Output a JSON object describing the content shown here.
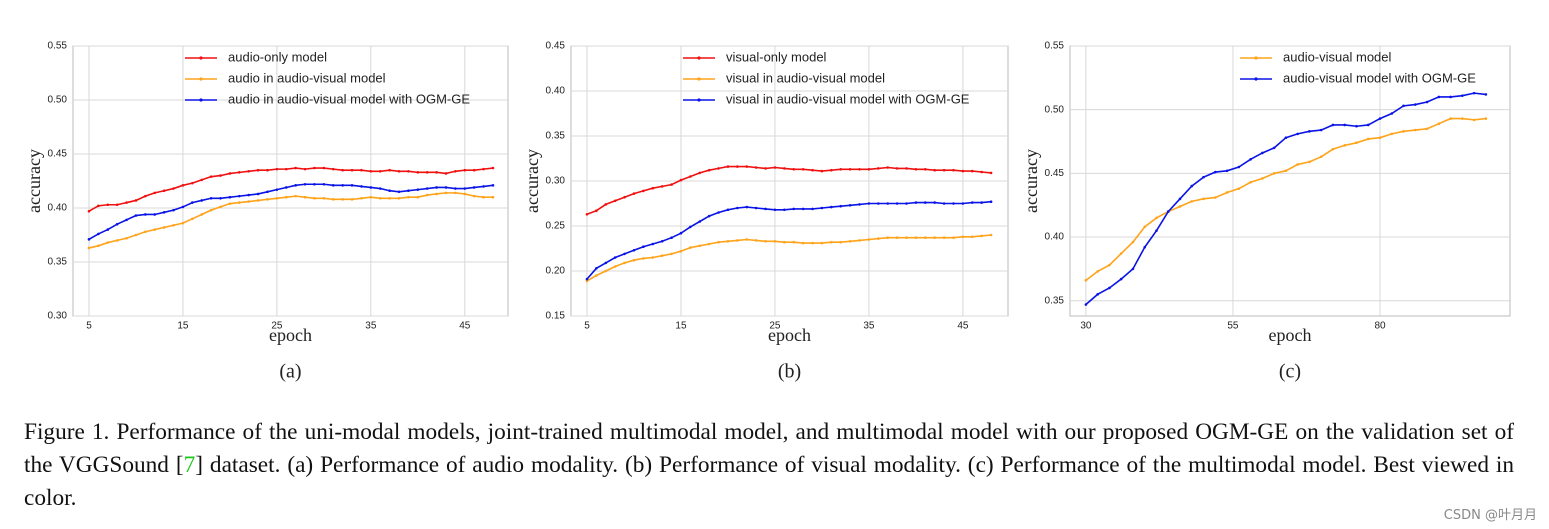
{
  "chart_data": [
    {
      "type": "line",
      "xlabel": "epoch",
      "ylabel": "accuracy",
      "subtitle": "(a)",
      "x": [
        5,
        6,
        7,
        8,
        9,
        10,
        11,
        12,
        13,
        14,
        15,
        16,
        17,
        18,
        19,
        20,
        21,
        22,
        23,
        24,
        25,
        26,
        27,
        28,
        29,
        30,
        31,
        32,
        33,
        34,
        35,
        36,
        37,
        38,
        39,
        40,
        41,
        42,
        43,
        44,
        45,
        46,
        47,
        48
      ],
      "series": [
        {
          "name": "audio-only model",
          "color": "#f01010",
          "values": [
            0.397,
            0.402,
            0.403,
            0.403,
            0.405,
            0.407,
            0.411,
            0.414,
            0.416,
            0.418,
            0.421,
            0.423,
            0.426,
            0.429,
            0.43,
            0.432,
            0.433,
            0.434,
            0.435,
            0.435,
            0.436,
            0.436,
            0.437,
            0.436,
            0.437,
            0.437,
            0.436,
            0.435,
            0.435,
            0.435,
            0.434,
            0.434,
            0.435,
            0.434,
            0.434,
            0.433,
            0.433,
            0.433,
            0.432,
            0.434,
            0.435,
            0.435,
            0.436,
            0.437
          ]
        },
        {
          "name": "audio in audio-visual model",
          "color": "#ffa31a",
          "values": [
            0.363,
            0.365,
            0.368,
            0.37,
            0.372,
            0.375,
            0.378,
            0.38,
            0.382,
            0.384,
            0.386,
            0.39,
            0.394,
            0.398,
            0.401,
            0.404,
            0.405,
            0.406,
            0.407,
            0.408,
            0.409,
            0.41,
            0.411,
            0.41,
            0.409,
            0.409,
            0.408,
            0.408,
            0.408,
            0.409,
            0.41,
            0.409,
            0.409,
            0.409,
            0.41,
            0.41,
            0.412,
            0.413,
            0.414,
            0.414,
            0.413,
            0.411,
            0.41,
            0.41
          ]
        },
        {
          "name": "audio in audio-visual model with OGM-GE",
          "color": "#0a14e6",
          "values": [
            0.371,
            0.376,
            0.38,
            0.385,
            0.389,
            0.393,
            0.394,
            0.394,
            0.396,
            0.398,
            0.401,
            0.405,
            0.407,
            0.409,
            0.409,
            0.41,
            0.411,
            0.412,
            0.413,
            0.415,
            0.417,
            0.419,
            0.421,
            0.422,
            0.422,
            0.422,
            0.421,
            0.421,
            0.421,
            0.42,
            0.419,
            0.418,
            0.416,
            0.415,
            0.416,
            0.417,
            0.418,
            0.419,
            0.419,
            0.418,
            0.418,
            0.419,
            0.42,
            0.421
          ]
        }
      ],
      "xlim": [
        3.3,
        49.6
      ],
      "xticks": [
        5,
        15,
        25,
        35,
        45
      ],
      "ylim": [
        0.3,
        0.55
      ],
      "yticks": [
        {
          "value": 0.3,
          "label": "0.30"
        },
        0.35,
        {
          "value": 0.4,
          "label": "0.40"
        },
        0.45,
        {
          "value": 0.5,
          "label": "0.50"
        },
        0.55
      ],
      "grid": true,
      "legend": "upper center"
    },
    {
      "type": "line",
      "xlabel": "epoch",
      "ylabel": "accuracy",
      "subtitle": "(b)",
      "x": [
        5,
        6,
        7,
        8,
        9,
        10,
        11,
        12,
        13,
        14,
        15,
        16,
        17,
        18,
        19,
        20,
        21,
        22,
        23,
        24,
        25,
        26,
        27,
        28,
        29,
        30,
        31,
        32,
        33,
        34,
        35,
        36,
        37,
        38,
        39,
        40,
        41,
        42,
        43,
        44,
        45,
        46,
        47,
        48
      ],
      "series": [
        {
          "name": "visual-only model",
          "color": "#f01010",
          "values": [
            0.263,
            0.267,
            0.274,
            0.278,
            0.282,
            0.286,
            0.289,
            0.292,
            0.294,
            0.296,
            0.301,
            0.305,
            0.309,
            0.312,
            0.314,
            0.316,
            0.316,
            0.316,
            0.315,
            0.314,
            0.315,
            0.314,
            0.313,
            0.313,
            0.312,
            0.311,
            0.312,
            0.313,
            0.313,
            0.313,
            0.313,
            0.314,
            0.315,
            0.314,
            0.314,
            0.313,
            0.313,
            0.312,
            0.312,
            0.312,
            0.311,
            0.311,
            0.31,
            0.309
          ]
        },
        {
          "name": "visual in audio-visual model",
          "color": "#ffa31a",
          "values": [
            0.189,
            0.195,
            0.2,
            0.205,
            0.209,
            0.212,
            0.214,
            0.215,
            0.217,
            0.219,
            0.222,
            0.226,
            0.228,
            0.23,
            0.232,
            0.233,
            0.234,
            0.235,
            0.234,
            0.233,
            0.233,
            0.232,
            0.232,
            0.231,
            0.231,
            0.231,
            0.232,
            0.232,
            0.233,
            0.234,
            0.235,
            0.236,
            0.237,
            0.237,
            0.237,
            0.237,
            0.237,
            0.237,
            0.237,
            0.237,
            0.238,
            0.238,
            0.239,
            0.24
          ]
        },
        {
          "name": "visual in audio-visual model with OGM-GE",
          "color": "#0a14e6",
          "values": [
            0.191,
            0.203,
            0.209,
            0.215,
            0.219,
            0.223,
            0.227,
            0.23,
            0.233,
            0.237,
            0.242,
            0.249,
            0.255,
            0.261,
            0.265,
            0.268,
            0.27,
            0.271,
            0.27,
            0.269,
            0.268,
            0.268,
            0.269,
            0.269,
            0.269,
            0.27,
            0.271,
            0.272,
            0.273,
            0.274,
            0.275,
            0.275,
            0.275,
            0.275,
            0.275,
            0.276,
            0.276,
            0.276,
            0.275,
            0.275,
            0.275,
            0.276,
            0.276,
            0.277
          ]
        }
      ],
      "xlim": [
        3.3,
        49.8
      ],
      "xticks": [
        5,
        15,
        25,
        35,
        45
      ],
      "ylim": [
        0.15,
        0.45
      ],
      "yticks": [
        0.15,
        {
          "value": 0.2,
          "label": "0.20"
        },
        0.25,
        {
          "value": 0.3,
          "label": "0.30"
        },
        0.35,
        {
          "value": 0.4,
          "label": "0.40"
        },
        0.45
      ],
      "grid": true,
      "legend": "upper center"
    },
    {
      "type": "line",
      "xlabel": "epoch",
      "ylabel": "accuracy",
      "subtitle": "(c)",
      "x": [
        30,
        32,
        34,
        36,
        38,
        40,
        42,
        44,
        46,
        48,
        50,
        52,
        54,
        56,
        58,
        60,
        62,
        64,
        66,
        68,
        70,
        72,
        74,
        76,
        78,
        80,
        82,
        84,
        86,
        88,
        90,
        92,
        94,
        96,
        98
      ],
      "series": [
        {
          "name": "audio-visual model",
          "color": "#ffa31a",
          "values": [
            0.366,
            0.373,
            0.378,
            0.387,
            0.396,
            0.408,
            0.415,
            0.42,
            0.424,
            0.428,
            0.43,
            0.431,
            0.435,
            0.438,
            0.443,
            0.446,
            0.45,
            0.452,
            0.457,
            0.459,
            0.463,
            0.469,
            0.472,
            0.474,
            0.477,
            0.478,
            0.481,
            0.483,
            0.484,
            0.485,
            0.489,
            0.493,
            0.493,
            0.492,
            0.493
          ]
        },
        {
          "name": "audio-visual model with OGM-GE",
          "color": "#0a14e6",
          "values": [
            0.347,
            0.355,
            0.36,
            0.367,
            0.375,
            0.392,
            0.405,
            0.42,
            0.43,
            0.44,
            0.447,
            0.451,
            0.452,
            0.455,
            0.461,
            0.466,
            0.47,
            0.478,
            0.481,
            0.483,
            0.484,
            0.488,
            0.488,
            0.487,
            0.488,
            0.493,
            0.497,
            0.503,
            0.504,
            0.506,
            0.51,
            0.51,
            0.511,
            0.513,
            0.512
          ]
        }
      ],
      "xlim": [
        27.3,
        102.1
      ],
      "xticks": [
        30,
        55,
        80
      ],
      "ylim": [
        0.338,
        0.55
      ],
      "yticks": [
        0.35,
        {
          "value": 0.4,
          "label": "0.40"
        },
        0.45,
        {
          "value": 0.5,
          "label": "0.50"
        },
        0.55
      ],
      "grid": true,
      "legend": "upper right"
    }
  ],
  "caption": {
    "before": "Figure 1. Performance of the uni-modal models, joint-trained multimodal model, and multimodal model with our proposed OGM-GE on the validation set of the VGGSound [",
    "ref": "7",
    "after": "] dataset. (a) Performance of audio modality. (b) Performance of visual modality. (c) Performance of the multimodal model. Best viewed in color."
  },
  "watermark": "CSDN @叶月月"
}
